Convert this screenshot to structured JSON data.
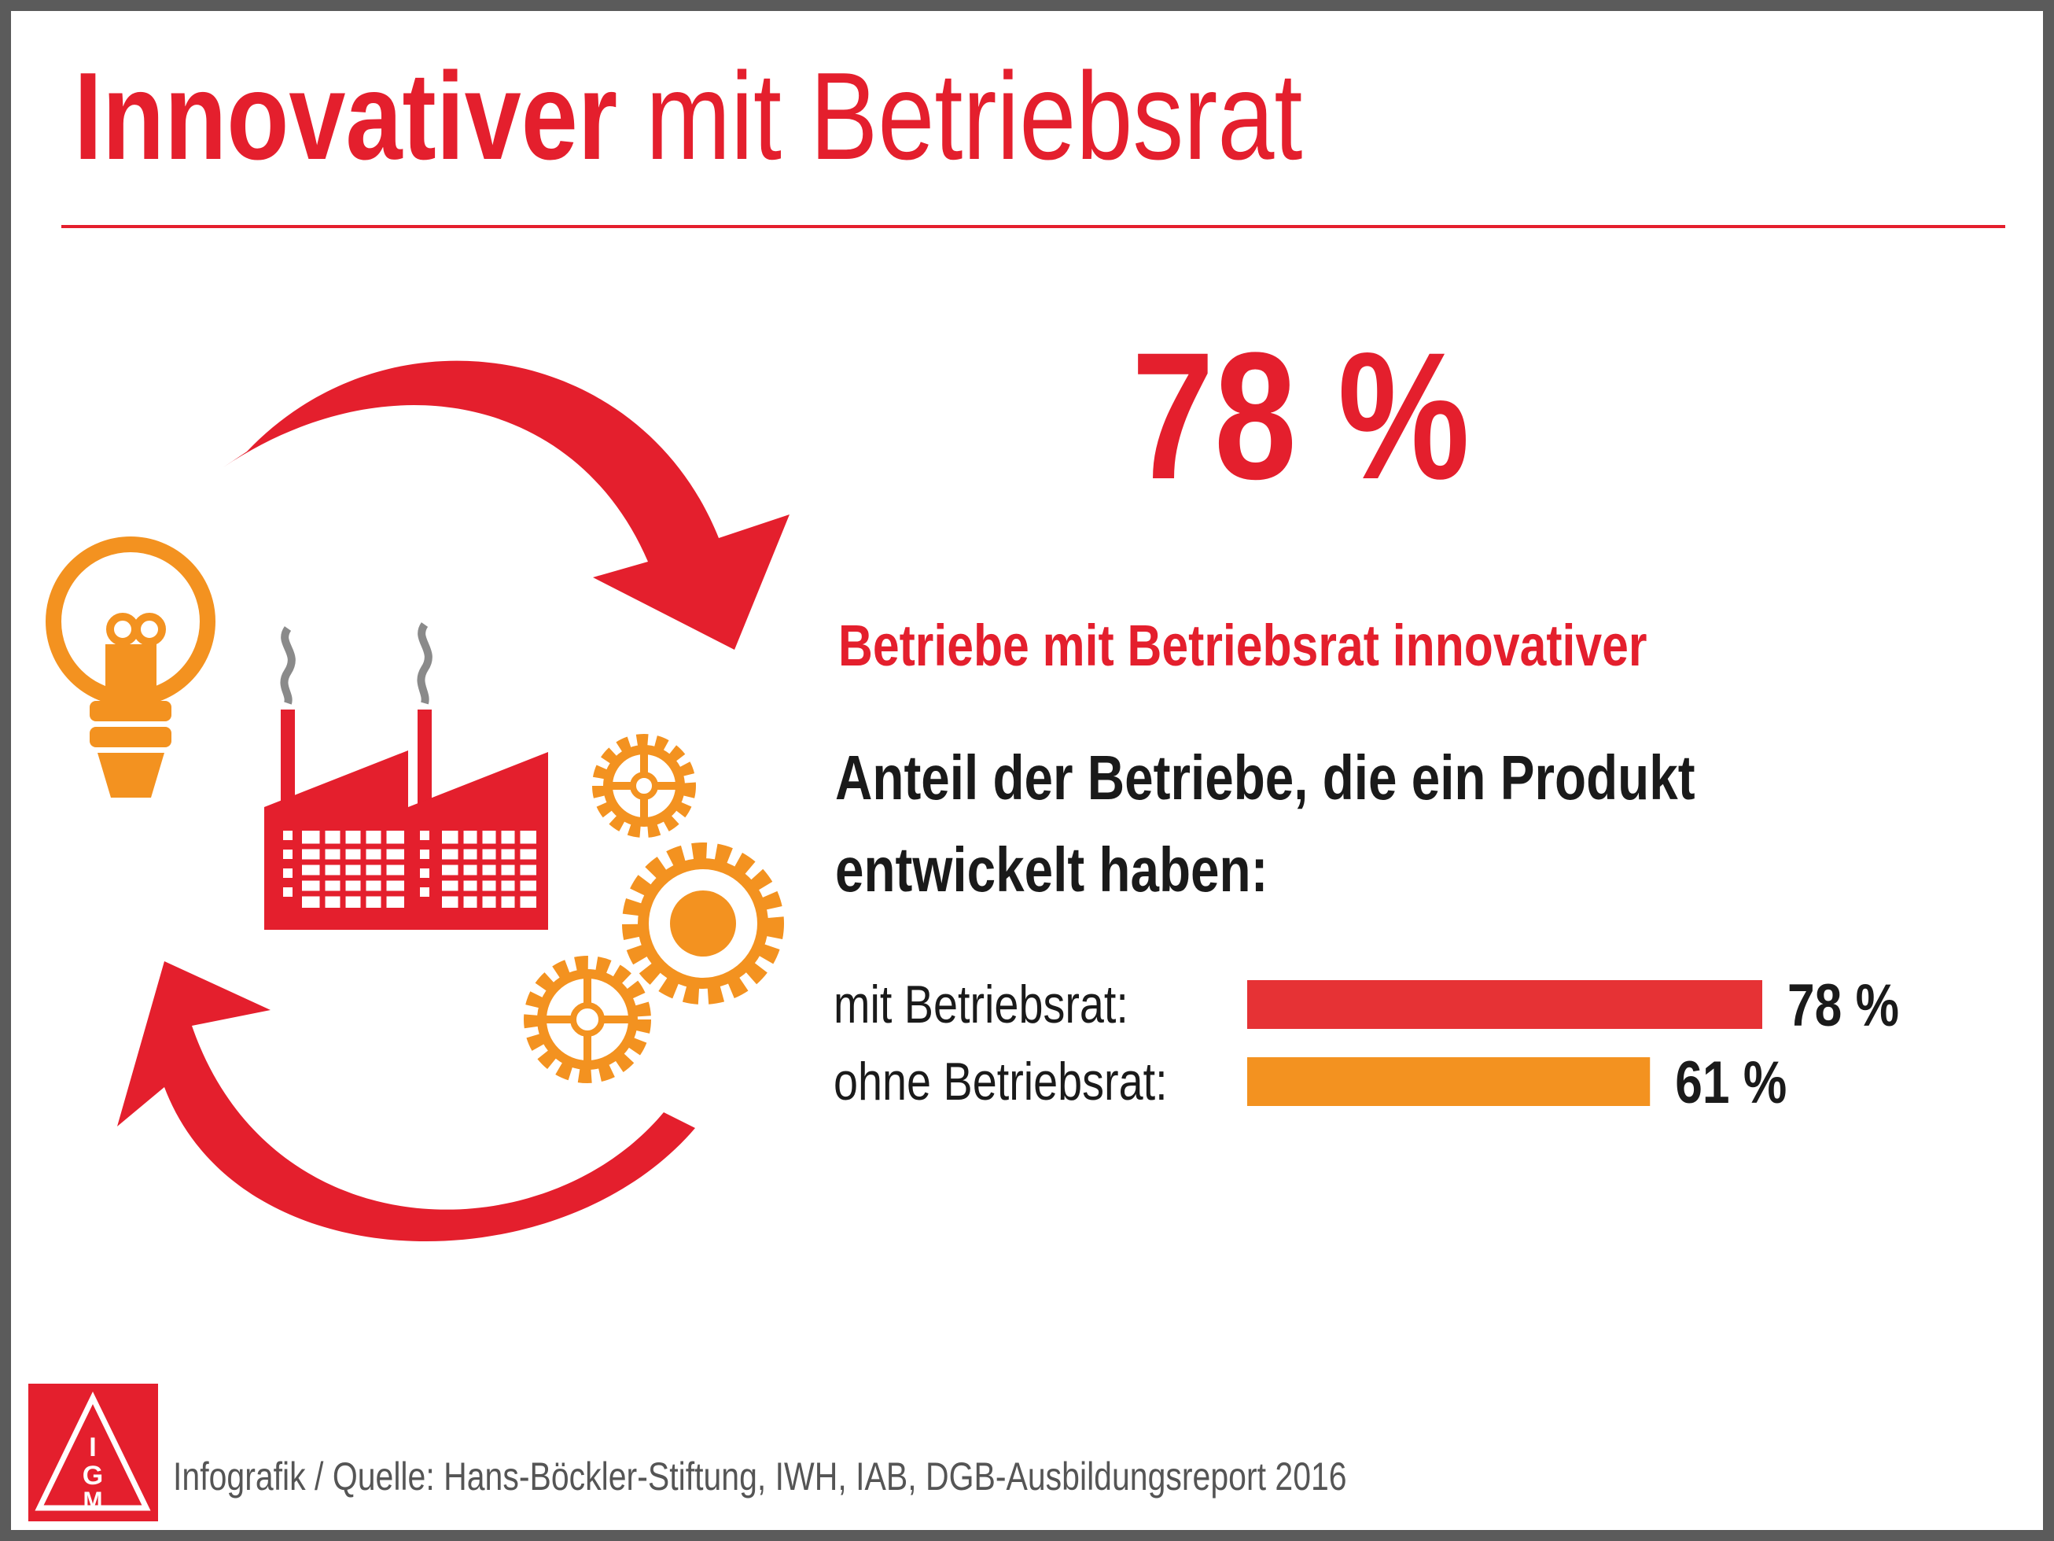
{
  "title": {
    "bold_part": "Innovativer",
    "rest": " mit Betriebsrat"
  },
  "headline_value": "78 %",
  "subtitle": "Betriebe mit Betriebsrat innovativer",
  "question": {
    "line1": "Anteil der Betriebe, die ein Produkt",
    "line2": "entwickelt haben:"
  },
  "source": "Infografik / Quelle: Hans-Böckler-Stiftung, IWH, IAB, DGB-Ausbildungsreport 2016",
  "logo_text": {
    "i": "I",
    "g": "G",
    "m": "M"
  },
  "colors": {
    "red": "#e63235",
    "orange": "#f39220",
    "brand_red": "#e41f2d",
    "frame": "#5b5b5b"
  },
  "icons": [
    "circular-arrows-icon",
    "light-bulb-icon",
    "factory-icon",
    "gears-icon",
    "igmetall-logo-icon"
  ],
  "chart_data": {
    "type": "bar",
    "orientation": "horizontal",
    "categories": [
      "mit Betriebsrat:",
      "ohne Betriebsrat:"
    ],
    "values": [
      78,
      61
    ],
    "value_labels": [
      "78 %",
      "61 %"
    ],
    "unit": "%",
    "colors": [
      "#e63235",
      "#f39220"
    ],
    "xlim": [
      0,
      100
    ]
  }
}
